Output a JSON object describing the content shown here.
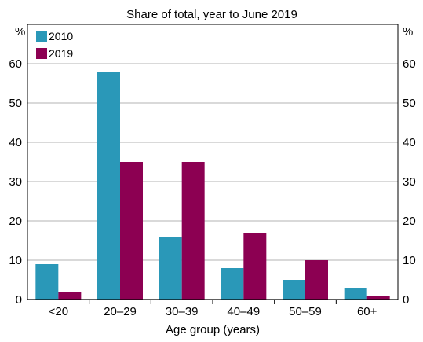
{
  "chart_data": {
    "type": "bar",
    "title": "",
    "subtitle": "Share of total, year to June 2019",
    "xlabel": "Age group (years)",
    "ylabel": "%",
    "ylabel_right": "%",
    "categories": [
      "<20",
      "20–29",
      "30–39",
      "40–49",
      "50–59",
      "60+"
    ],
    "series": [
      {
        "name": "2010",
        "color": "#2a98b8",
        "values": [
          9,
          58,
          16,
          8,
          5,
          3
        ]
      },
      {
        "name": "2019",
        "color": "#8c0052",
        "values": [
          2,
          35,
          35,
          17,
          10,
          1
        ]
      }
    ],
    "ylim": [
      0,
      70
    ],
    "yticks": [
      0,
      10,
      20,
      30,
      40,
      50,
      60
    ],
    "grid": true,
    "legend_position": "top-left",
    "gridline_color": "#b3b3b3"
  }
}
